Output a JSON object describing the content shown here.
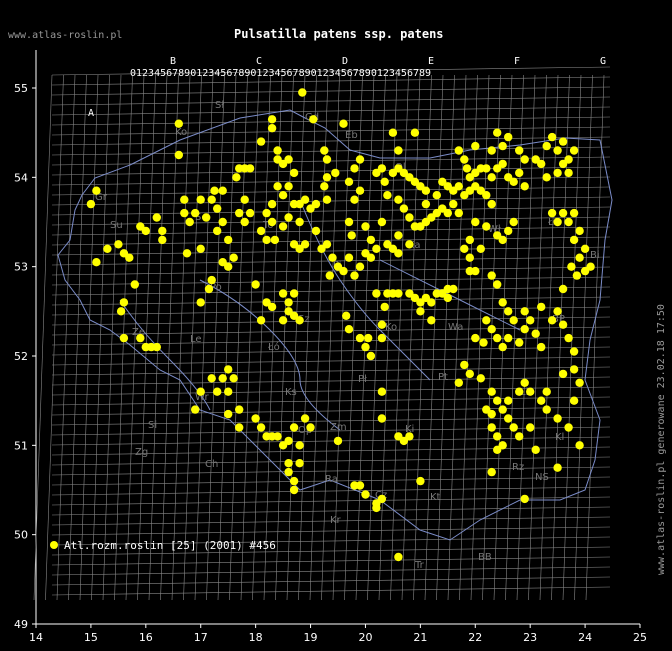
{
  "header": {
    "site": "www.atlas-roslin.pl",
    "title": "Pulsatilla patens ssp. patens"
  },
  "side_note": "www.atlas-roslin.pl generowane 23.02.18 17:50",
  "legend": {
    "label": "Atl.rozm.roslin [25] (2001) #456",
    "color": "#ffff00"
  },
  "axes": {
    "x_ticks": [
      "14",
      "15",
      "16",
      "17",
      "18",
      "19",
      "20",
      "21",
      "22",
      "23",
      "24",
      "25"
    ],
    "y_ticks": [
      "55",
      "54",
      "53",
      "52",
      "51",
      "50",
      "49"
    ]
  },
  "grid_columns": {
    "top_letters": [
      "B",
      "C",
      "D",
      "E",
      "F",
      "G"
    ],
    "left_block_letter": "A",
    "digits": "0123456789"
  },
  "region_labels": [
    "Sł",
    "Gd",
    "Eb",
    "Ko",
    "Ol",
    "Gr",
    "Su",
    "Łk",
    "Sc",
    "Pi",
    "To",
    "Ka",
    "Wł",
    "Bi",
    "Po",
    "Ko",
    "Łó",
    "Wa",
    "Ze",
    "Le",
    "Sz",
    "Pł",
    "Pt",
    "Si",
    "BP",
    "Zg",
    "Wr",
    "Lb",
    "Op",
    "Kl",
    "Ki",
    "Zm",
    "Ra",
    "Cz",
    "Kt",
    "Kr",
    "Tr",
    "BB",
    "NS",
    "Rz",
    "Ch",
    "Ks"
  ],
  "map_data": {
    "type": "distribution",
    "species": "Pulsatilla patens ssp. patens",
    "marker_color": "#ffff00",
    "points": [
      [
        15.0,
        53.7
      ],
      [
        15.1,
        53.85
      ],
      [
        15.3,
        53.2
      ],
      [
        15.1,
        53.05
      ],
      [
        15.6,
        53.15
      ],
      [
        15.7,
        53.1
      ],
      [
        15.5,
        53.25
      ],
      [
        15.9,
        53.45
      ],
      [
        15.8,
        52.8
      ],
      [
        15.6,
        52.6
      ],
      [
        15.55,
        52.5
      ],
      [
        15.6,
        52.2
      ],
      [
        15.9,
        52.2
      ],
      [
        16.2,
        52.1
      ],
      [
        16.1,
        52.1
      ],
      [
        16.0,
        52.1
      ],
      [
        16.3,
        53.3
      ],
      [
        16.3,
        53.4
      ],
      [
        16.2,
        53.55
      ],
      [
        16.0,
        53.4
      ],
      [
        16.6,
        54.6
      ],
      [
        16.6,
        54.25
      ],
      [
        16.7,
        53.75
      ],
      [
        16.7,
        53.6
      ],
      [
        16.8,
        53.5
      ],
      [
        16.9,
        53.6
      ],
      [
        17.0,
        53.75
      ],
      [
        17.1,
        53.55
      ],
      [
        17.3,
        53.4
      ],
      [
        17.4,
        53.5
      ],
      [
        16.75,
        53.15
      ],
      [
        17.0,
        53.2
      ],
      [
        17.2,
        53.75
      ],
      [
        17.3,
        53.65
      ],
      [
        17.25,
        53.85
      ],
      [
        17.4,
        53.85
      ],
      [
        17.4,
        53.05
      ],
      [
        17.2,
        52.85
      ],
      [
        17.15,
        52.75
      ],
      [
        17.0,
        52.6
      ],
      [
        17.5,
        53.3
      ],
      [
        17.5,
        53.0
      ],
      [
        17.6,
        53.1
      ],
      [
        17.7,
        53.6
      ],
      [
        17.8,
        53.75
      ],
      [
        17.9,
        53.6
      ],
      [
        17.8,
        53.5
      ],
      [
        17.65,
        54.0
      ],
      [
        17.7,
        54.1
      ],
      [
        17.8,
        54.1
      ],
      [
        17.9,
        54.1
      ],
      [
        18.3,
        54.65
      ],
      [
        18.3,
        54.55
      ],
      [
        18.1,
        54.4
      ],
      [
        18.4,
        54.3
      ],
      [
        18.4,
        54.2
      ],
      [
        18.5,
        54.15
      ],
      [
        18.6,
        54.2
      ],
      [
        18.7,
        54.05
      ],
      [
        18.6,
        53.9
      ],
      [
        18.4,
        53.9
      ],
      [
        18.3,
        53.7
      ],
      [
        18.5,
        53.8
      ],
      [
        18.2,
        53.6
      ],
      [
        18.3,
        53.5
      ],
      [
        18.1,
        53.4
      ],
      [
        18.2,
        53.3
      ],
      [
        18.35,
        53.3
      ],
      [
        18.5,
        53.45
      ],
      [
        18.6,
        53.55
      ],
      [
        18.7,
        53.7
      ],
      [
        18.8,
        53.7
      ],
      [
        18.9,
        53.75
      ],
      [
        18.8,
        53.5
      ],
      [
        18.7,
        53.25
      ],
      [
        18.8,
        53.2
      ],
      [
        18.9,
        53.25
      ],
      [
        18.0,
        52.8
      ],
      [
        18.5,
        52.7
      ],
      [
        18.6,
        52.6
      ],
      [
        18.7,
        52.7
      ],
      [
        18.6,
        52.5
      ],
      [
        18.7,
        52.45
      ],
      [
        18.8,
        52.4
      ],
      [
        18.5,
        52.4
      ],
      [
        18.3,
        52.55
      ],
      [
        18.2,
        52.6
      ],
      [
        18.1,
        52.4
      ],
      [
        17.5,
        51.85
      ],
      [
        17.4,
        51.75
      ],
      [
        17.6,
        51.75
      ],
      [
        17.5,
        51.6
      ],
      [
        17.3,
        51.6
      ],
      [
        17.2,
        51.75
      ],
      [
        17.0,
        51.6
      ],
      [
        16.9,
        51.4
      ],
      [
        17.5,
        51.35
      ],
      [
        17.7,
        51.2
      ],
      [
        17.7,
        51.4
      ],
      [
        18.0,
        51.3
      ],
      [
        18.1,
        51.2
      ],
      [
        18.3,
        51.1
      ],
      [
        18.2,
        51.1
      ],
      [
        18.4,
        51.1
      ],
      [
        18.6,
        51.05
      ],
      [
        18.5,
        51.0
      ],
      [
        18.7,
        51.2
      ],
      [
        18.9,
        51.3
      ],
      [
        19.0,
        51.2
      ],
      [
        18.8,
        51.0
      ],
      [
        18.6,
        50.8
      ],
      [
        18.6,
        50.7
      ],
      [
        18.7,
        50.6
      ],
      [
        18.7,
        50.5
      ],
      [
        18.8,
        50.8
      ],
      [
        18.85,
        54.95
      ],
      [
        19.05,
        54.65
      ],
      [
        19.3,
        54.0
      ],
      [
        19.25,
        53.9
      ],
      [
        19.3,
        53.75
      ],
      [
        19.1,
        53.7
      ],
      [
        19.0,
        53.65
      ],
      [
        19.1,
        53.4
      ],
      [
        19.2,
        53.2
      ],
      [
        19.3,
        53.25
      ],
      [
        19.4,
        53.1
      ],
      [
        19.5,
        53.0
      ],
      [
        19.6,
        52.95
      ],
      [
        19.35,
        52.9
      ],
      [
        19.8,
        52.9
      ],
      [
        19.45,
        54.05
      ],
      [
        19.25,
        54.3
      ],
      [
        19.3,
        54.2
      ],
      [
        19.6,
        54.6
      ],
      [
        19.7,
        53.95
      ],
      [
        19.8,
        54.1
      ],
      [
        19.9,
        54.2
      ],
      [
        19.8,
        53.75
      ],
      [
        19.9,
        53.85
      ],
      [
        19.7,
        53.5
      ],
      [
        19.75,
        53.35
      ],
      [
        19.7,
        53.1
      ],
      [
        20.0,
        53.15
      ],
      [
        20.1,
        53.1
      ],
      [
        19.9,
        53.0
      ],
      [
        19.65,
        52.45
      ],
      [
        19.7,
        52.3
      ],
      [
        19.9,
        52.2
      ],
      [
        20.0,
        52.1
      ],
      [
        20.05,
        52.2
      ],
      [
        20.3,
        52.35
      ],
      [
        20.35,
        52.55
      ],
      [
        20.6,
        52.7
      ],
      [
        20.5,
        52.7
      ],
      [
        20.4,
        52.7
      ],
      [
        20.2,
        52.7
      ],
      [
        20.3,
        52.2
      ],
      [
        20.1,
        52.0
      ],
      [
        20.5,
        54.5
      ],
      [
        20.6,
        54.3
      ],
      [
        20.9,
        54.5
      ],
      [
        20.2,
        54.05
      ],
      [
        20.3,
        54.1
      ],
      [
        20.35,
        53.95
      ],
      [
        20.4,
        53.8
      ],
      [
        20.5,
        54.05
      ],
      [
        20.6,
        54.1
      ],
      [
        20.7,
        54.05
      ],
      [
        20.8,
        54.0
      ],
      [
        20.9,
        53.95
      ],
      [
        21.0,
        53.9
      ],
      [
        21.1,
        53.85
      ],
      [
        20.6,
        53.75
      ],
      [
        20.7,
        53.65
      ],
      [
        20.8,
        53.55
      ],
      [
        20.9,
        53.45
      ],
      [
        21.0,
        53.45
      ],
      [
        21.1,
        53.5
      ],
      [
        21.2,
        53.55
      ],
      [
        21.3,
        53.6
      ],
      [
        21.4,
        53.65
      ],
      [
        21.5,
        53.6
      ],
      [
        21.1,
        53.7
      ],
      [
        21.3,
        53.8
      ],
      [
        20.3,
        53.5
      ],
      [
        20.0,
        53.45
      ],
      [
        20.1,
        53.3
      ],
      [
        20.2,
        53.2
      ],
      [
        20.4,
        53.25
      ],
      [
        20.6,
        53.35
      ],
      [
        20.8,
        53.25
      ],
      [
        20.8,
        52.7
      ],
      [
        20.9,
        52.65
      ],
      [
        21.0,
        52.6
      ],
      [
        21.1,
        52.65
      ],
      [
        21.2,
        52.6
      ],
      [
        21.3,
        52.7
      ],
      [
        21.4,
        52.7
      ],
      [
        21.5,
        52.75
      ],
      [
        21.6,
        52.75
      ],
      [
        21.5,
        52.65
      ],
      [
        21.0,
        52.5
      ],
      [
        21.2,
        52.4
      ],
      [
        21.8,
        54.2
      ],
      [
        21.85,
        54.1
      ],
      [
        21.9,
        54.0
      ],
      [
        22.0,
        54.05
      ],
      [
        22.1,
        54.1
      ],
      [
        22.2,
        54.1
      ],
      [
        22.3,
        54.0
      ],
      [
        22.4,
        54.1
      ],
      [
        22.5,
        54.15
      ],
      [
        22.6,
        54.0
      ],
      [
        22.7,
        53.95
      ],
      [
        22.8,
        54.05
      ],
      [
        22.9,
        53.9
      ],
      [
        21.7,
        53.9
      ],
      [
        21.8,
        53.8
      ],
      [
        21.9,
        53.85
      ],
      [
        22.0,
        53.9
      ],
      [
        22.1,
        53.85
      ],
      [
        22.2,
        53.8
      ],
      [
        22.3,
        53.7
      ],
      [
        21.6,
        53.85
      ],
      [
        21.5,
        53.9
      ],
      [
        21.4,
        53.95
      ],
      [
        21.6,
        53.7
      ],
      [
        21.7,
        53.6
      ],
      [
        22.0,
        53.5
      ],
      [
        22.2,
        53.45
      ],
      [
        22.4,
        53.35
      ],
      [
        22.5,
        53.3
      ],
      [
        22.6,
        53.4
      ],
      [
        22.7,
        53.5
      ],
      [
        22.1,
        53.2
      ],
      [
        21.9,
        53.3
      ],
      [
        21.8,
        53.2
      ],
      [
        21.9,
        53.1
      ],
      [
        22.0,
        52.95
      ],
      [
        21.9,
        52.95
      ],
      [
        22.3,
        54.3
      ],
      [
        22.4,
        54.5
      ],
      [
        22.5,
        54.35
      ],
      [
        22.6,
        54.45
      ],
      [
        22.8,
        54.3
      ],
      [
        22.9,
        54.2
      ],
      [
        22.0,
        54.35
      ],
      [
        21.7,
        54.3
      ],
      [
        23.1,
        54.2
      ],
      [
        23.2,
        54.15
      ],
      [
        23.3,
        54.35
      ],
      [
        23.4,
        54.45
      ],
      [
        23.5,
        54.3
      ],
      [
        23.6,
        54.4
      ],
      [
        23.7,
        54.2
      ],
      [
        23.8,
        54.3
      ],
      [
        23.3,
        54.0
      ],
      [
        23.5,
        54.05
      ],
      [
        23.6,
        54.15
      ],
      [
        23.7,
        54.05
      ],
      [
        23.4,
        53.6
      ],
      [
        23.5,
        53.5
      ],
      [
        23.6,
        53.6
      ],
      [
        23.7,
        53.5
      ],
      [
        23.8,
        53.6
      ],
      [
        23.9,
        53.4
      ],
      [
        23.8,
        53.3
      ],
      [
        24.0,
        53.2
      ],
      [
        23.9,
        53.1
      ],
      [
        24.1,
        53.0
      ],
      [
        23.85,
        52.9
      ],
      [
        24.0,
        52.95
      ],
      [
        23.75,
        53.0
      ],
      [
        22.3,
        52.9
      ],
      [
        22.4,
        52.8
      ],
      [
        22.5,
        52.6
      ],
      [
        22.6,
        52.5
      ],
      [
        22.7,
        52.4
      ],
      [
        22.9,
        52.5
      ],
      [
        23.2,
        52.55
      ],
      [
        23.4,
        52.4
      ],
      [
        23.5,
        52.5
      ],
      [
        23.6,
        52.35
      ],
      [
        23.7,
        52.2
      ],
      [
        23.8,
        52.05
      ],
      [
        23.6,
        52.75
      ],
      [
        22.2,
        52.4
      ],
      [
        22.3,
        52.3
      ],
      [
        22.4,
        52.2
      ],
      [
        22.5,
        52.1
      ],
      [
        22.6,
        52.2
      ],
      [
        22.8,
        52.15
      ],
      [
        22.9,
        52.3
      ],
      [
        23.0,
        52.4
      ],
      [
        23.1,
        52.25
      ],
      [
        23.2,
        52.1
      ],
      [
        22.0,
        52.2
      ],
      [
        22.15,
        52.15
      ],
      [
        21.7,
        51.7
      ],
      [
        21.8,
        51.9
      ],
      [
        21.9,
        51.8
      ],
      [
        22.1,
        51.75
      ],
      [
        22.3,
        51.6
      ],
      [
        22.4,
        51.5
      ],
      [
        22.2,
        51.4
      ],
      [
        22.3,
        51.35
      ],
      [
        22.5,
        51.4
      ],
      [
        22.6,
        51.5
      ],
      [
        22.8,
        51.6
      ],
      [
        22.9,
        51.7
      ],
      [
        23.0,
        51.6
      ],
      [
        23.2,
        51.5
      ],
      [
        23.3,
        51.6
      ],
      [
        22.3,
        51.2
      ],
      [
        22.4,
        51.1
      ],
      [
        22.5,
        51.0
      ],
      [
        22.4,
        50.95
      ],
      [
        22.6,
        51.3
      ],
      [
        22.7,
        51.2
      ],
      [
        22.8,
        51.1
      ],
      [
        23.0,
        51.2
      ],
      [
        23.1,
        50.95
      ],
      [
        23.3,
        51.4
      ],
      [
        23.5,
        51.3
      ],
      [
        23.7,
        51.2
      ],
      [
        23.9,
        51.0
      ],
      [
        23.8,
        51.5
      ],
      [
        23.9,
        51.7
      ],
      [
        23.6,
        51.8
      ],
      [
        23.8,
        51.85
      ],
      [
        20.6,
        51.1
      ],
      [
        20.8,
        51.1
      ],
      [
        20.7,
        51.05
      ],
      [
        20.3,
        51.3
      ],
      [
        20.3,
        51.6
      ],
      [
        19.5,
        51.05
      ],
      [
        19.8,
        50.55
      ],
      [
        19.9,
        50.55
      ],
      [
        20.0,
        50.45
      ],
      [
        20.2,
        50.35
      ],
      [
        20.3,
        50.4
      ],
      [
        20.2,
        50.3
      ],
      [
        21.0,
        50.6
      ],
      [
        22.3,
        50.7
      ],
      [
        22.9,
        50.4
      ],
      [
        23.5,
        50.75
      ],
      [
        20.6,
        49.75
      ],
      [
        20.5,
        53.2
      ],
      [
        20.6,
        53.15
      ]
    ]
  }
}
